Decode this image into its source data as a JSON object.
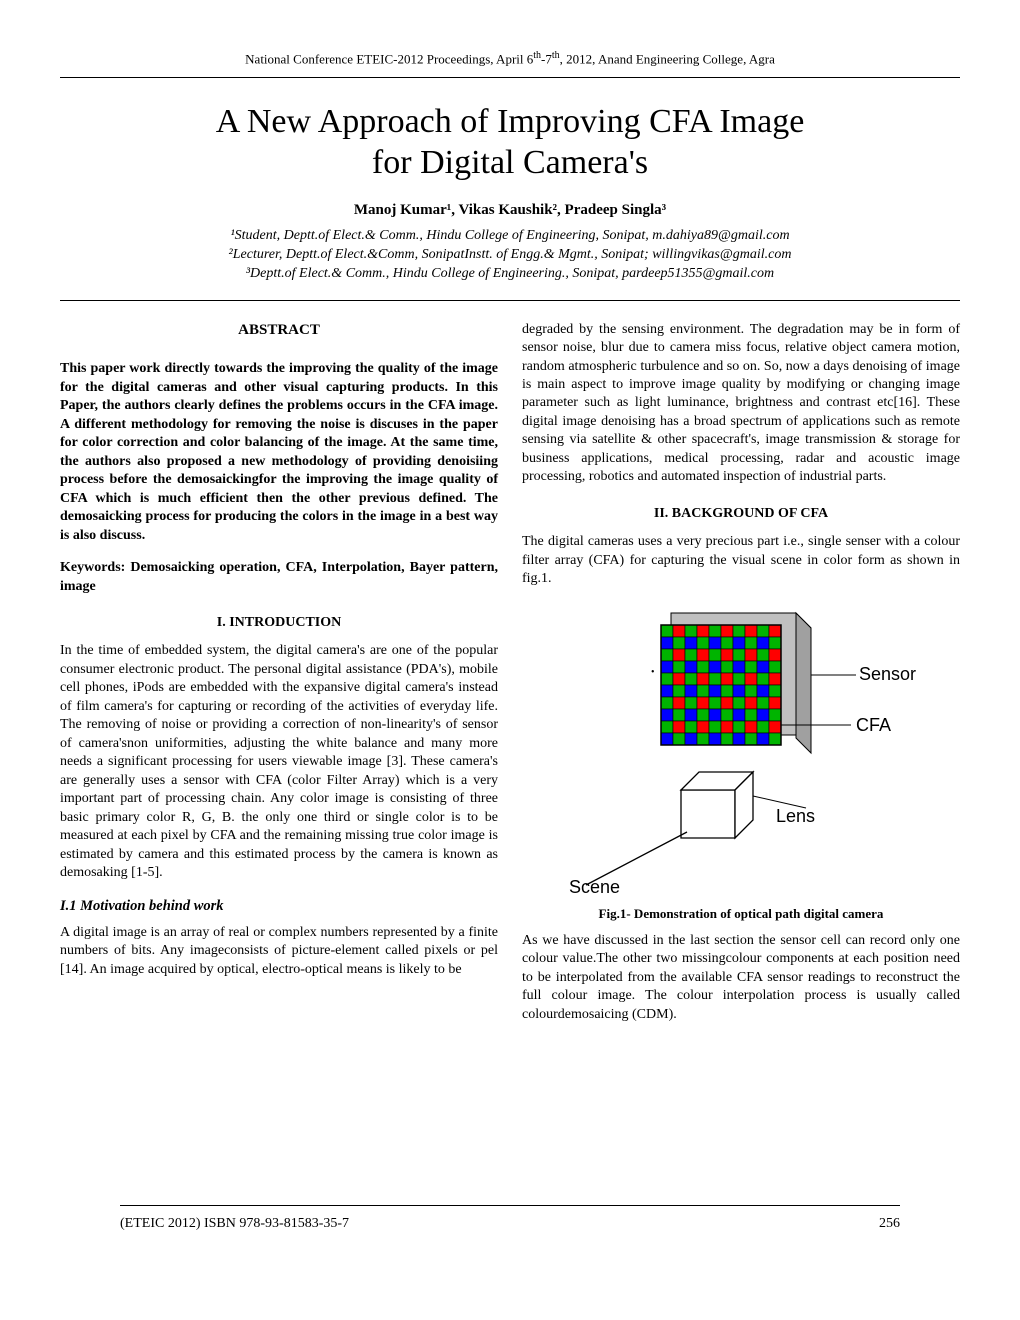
{
  "header": {
    "conference_prefix": "National Conference ETEIC-2012 Proceedings, April 6",
    "th1": "th",
    "dash": "-7",
    "th2": "th",
    "conference_suffix": ", 2012, Anand Engineering College, Agra"
  },
  "title_line1": "A New Approach of Improving CFA Image",
  "title_line2": "for Digital Camera's",
  "authors_text": "Manoj Kumar¹, Vikas Kaushik², Pradeep Singla³",
  "affiliations": {
    "a1": "¹Student, Deptt.of Elect.& Comm., Hindu College of Engineering, Sonipat, m.dahiya89@gmail.com",
    "a2": "²Lecturer, Deptt.of Elect.&Comm, SonipatInstt. of Engg.& Mgmt., Sonipat; willingvikas@gmail.com",
    "a3": "³Deptt.of Elect.& Comm., Hindu College of Engineering., Sonipat, pardeep51355@gmail.com"
  },
  "abstract": {
    "heading": "ABSTRACT",
    "body": "This paper work directly towards the improving the quality of the image for the digital cameras and other visual capturing products. In this Paper, the authors clearly defines the problems occurs in the CFA image. A different methodology for removing the noise is discuses in the paper for color correction and color balancing of the image. At the same time, the authors also proposed a new methodology of providing denoisiing process before the demosaickingfor the improving the image quality of CFA which is much efficient then the other previous defined. The demosaicking process for producing the colors in the image in a best way is also discuss.",
    "keywords": "Keywords: Demosaicking operation, CFA, Interpolation, Bayer pattern, image"
  },
  "section1": {
    "heading": "I.      INTRODUCTION",
    "p1": "In the time of embedded system, the digital camera's are one of the popular consumer electronic product. The personal digital assistance (PDA's), mobile cell phones, iPods are embedded with the expansive digital camera's instead of film camera's for capturing or recording of the activities of everyday life. The removing of noise or providing a correction of non-linearity's of sensor of camera'snon uniformities, adjusting the white balance and many more needs a significant processing for users viewable image [3]. These camera's are generally uses a sensor with CFA (color Filter Array) which is a very important part of processing chain. Any color image is consisting of three basic primary color R, G, B. the only one third or single color is to be measured at each pixel by CFA and the remaining missing true color image is estimated by camera and this estimated process by the camera is known as demosaking [1-5].",
    "subhead": "I.1 Motivation behind work",
    "p2": "A digital image is an array of real or complex numbers represented by a finite numbers of bits. Any imageconsists of picture-element called pixels or pel [14]. An image acquired by optical, electro-optical means is likely to be"
  },
  "col2": {
    "p1": "degraded by the sensing environment. The degradation may be in form of sensor noise, blur due to camera miss focus, relative object camera motion, random atmospheric turbulence and so on. So, now a days denoising of image is main aspect to improve image quality by modifying or changing image parameter such as light luminance, brightness and contrast etc[16]. These digital image denoising has a broad spectrum of applications such as remote sensing via satellite & other spacecraft's, image transmission & storage for business applications, medical processing, radar and acoustic image processing, robotics and automated inspection of industrial parts."
  },
  "section2": {
    "heading": "II.      BACKGROUND OF CFA",
    "p1": "The digital cameras uses a very precious part i.e., single senser with a colour filter array (CFA) for capturing the visual scene in color form as shown in fig.1.",
    "figcap": "Fig.1- Demonstration of optical path digital camera",
    "p2": "As we have discussed in the last section the sensor cell can record only one colour value.The other two missingcolour components at each position need to be interpolated from the available CFA sensor readings to reconstruct the full colour image. The colour interpolation process is usually called colourdemosaicing (CDM)."
  },
  "figure": {
    "labels": {
      "sensor": "Sensor",
      "cfa": "CFA",
      "lens": "Lens",
      "scene": "Scene"
    },
    "colors": {
      "red": "#ff0000",
      "green": "#00b400",
      "blue": "#0000ff",
      "outline": "#000000",
      "gray": "#c0c0c0",
      "white": "#ffffff"
    },
    "cfa_grid_size": 10
  },
  "footer": {
    "isbn": "(ETEIC 2012) ISBN 978-93-81583-35-7",
    "page": "256"
  }
}
